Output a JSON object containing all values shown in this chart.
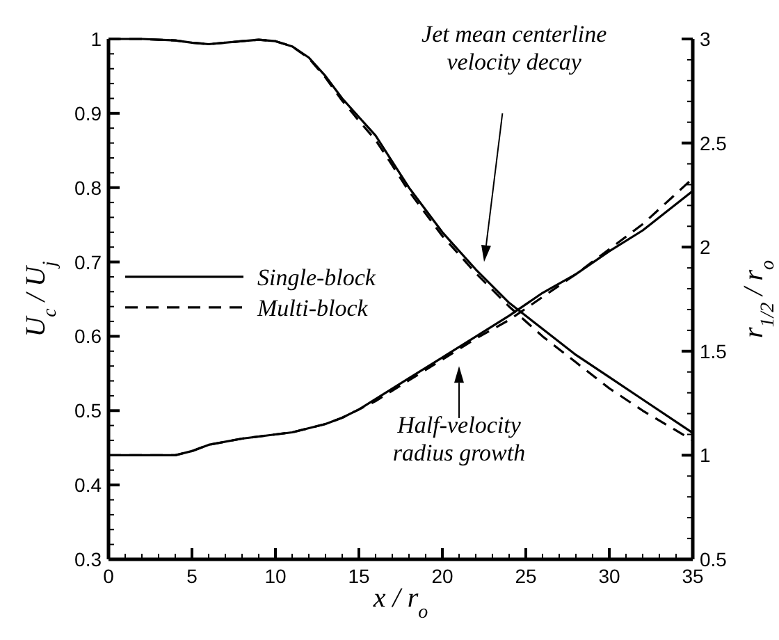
{
  "chart_data": {
    "type": "line",
    "xlabel": "x / r$_{o}$",
    "ylabel": "U$_{c}$ / U$_{j}$",
    "y2label": "r$_{1/2}$ / r$_{o}$",
    "xlim": [
      0,
      35
    ],
    "ylim": [
      0.3,
      1
    ],
    "y2lim": [
      0.5,
      3
    ],
    "xticks": [
      0,
      {
        "value": 1,
        "label": null
      },
      {
        "value": 2,
        "label": null
      },
      {
        "value": 3,
        "label": null
      },
      {
        "value": 4,
        "label": null
      },
      5,
      {
        "value": 6,
        "label": null
      },
      {
        "value": 7,
        "label": null
      },
      {
        "value": 8,
        "label": null
      },
      {
        "value": 9,
        "label": null
      },
      10,
      {
        "value": 11,
        "label": null
      },
      {
        "value": 12,
        "label": null
      },
      {
        "value": 13,
        "label": null
      },
      {
        "value": 14,
        "label": null
      },
      15,
      {
        "value": 16,
        "label": null
      },
      {
        "value": 17,
        "label": null
      },
      {
        "value": 18,
        "label": null
      },
      {
        "value": 19,
        "label": null
      },
      20,
      {
        "value": 21,
        "label": null
      },
      {
        "value": 22,
        "label": null
      },
      {
        "value": 23,
        "label": null
      },
      {
        "value": 24,
        "label": null
      },
      25,
      {
        "value": 26,
        "label": null
      },
      {
        "value": 27,
        "label": null
      },
      {
        "value": 28,
        "label": null
      },
      {
        "value": 29,
        "label": null
      },
      30,
      {
        "value": 31,
        "label": null
      },
      {
        "value": 32,
        "label": null
      },
      {
        "value": 33,
        "label": null
      },
      {
        "value": 34,
        "label": null
      },
      35
    ],
    "yticks": [
      0.3,
      {
        "value": 0.32,
        "label": null
      },
      {
        "value": 0.34,
        "label": null
      },
      {
        "value": 0.36,
        "label": null
      },
      {
        "value": 0.38,
        "label": null
      },
      0.4,
      {
        "value": 0.42,
        "label": null
      },
      {
        "value": 0.44,
        "label": null
      },
      {
        "value": 0.46,
        "label": null
      },
      {
        "value": 0.48,
        "label": null
      },
      0.5,
      {
        "value": 0.52,
        "label": null
      },
      {
        "value": 0.54,
        "label": null
      },
      {
        "value": 0.56,
        "label": null
      },
      {
        "value": 0.58,
        "label": null
      },
      0.6,
      {
        "value": 0.62,
        "label": null
      },
      {
        "value": 0.64,
        "label": null
      },
      {
        "value": 0.66,
        "label": null
      },
      {
        "value": 0.68,
        "label": null
      },
      0.7,
      {
        "value": 0.72,
        "label": null
      },
      {
        "value": 0.74,
        "label": null
      },
      {
        "value": 0.76,
        "label": null
      },
      {
        "value": 0.78,
        "label": null
      },
      0.8,
      {
        "value": 0.82,
        "label": null
      },
      {
        "value": 0.84,
        "label": null
      },
      {
        "value": 0.86,
        "label": null
      },
      {
        "value": 0.88,
        "label": null
      },
      0.9,
      {
        "value": 0.92,
        "label": null
      },
      {
        "value": 0.94,
        "label": null
      },
      {
        "value": 0.96,
        "label": null
      },
      {
        "value": 0.98,
        "label": null
      },
      1
    ],
    "y2ticks": [
      0.5,
      {
        "value": 0.6,
        "label": null
      },
      {
        "value": 0.7,
        "label": null
      },
      {
        "value": 0.8,
        "label": null
      },
      {
        "value": 0.9,
        "label": null
      },
      1,
      {
        "value": 1.1,
        "label": null
      },
      {
        "value": 1.2,
        "label": null
      },
      {
        "value": 1.3,
        "label": null
      },
      {
        "value": 1.4,
        "label": null
      },
      1.5,
      {
        "value": 1.6,
        "label": null
      },
      {
        "value": 1.7,
        "label": null
      },
      {
        "value": 1.8,
        "label": null
      },
      {
        "value": 1.9,
        "label": null
      },
      2,
      {
        "value": 2.1,
        "label": null
      },
      {
        "value": 2.2,
        "label": null
      },
      {
        "value": 2.3,
        "label": null
      },
      {
        "value": 2.4,
        "label": null
      },
      2.5,
      {
        "value": 2.6,
        "label": null
      },
      {
        "value": 2.7,
        "label": null
      },
      {
        "value": 2.8,
        "label": null
      },
      {
        "value": 2.9,
        "label": null
      },
      3
    ],
    "x": [
      0,
      2,
      4,
      5,
      6,
      8,
      9,
      10,
      11,
      12,
      13,
      14,
      15,
      16,
      17,
      18,
      20,
      22,
      24,
      26,
      28,
      30,
      32,
      35
    ],
    "series": [
      {
        "name": "Single-block",
        "color": "#000000",
        "line_style": "solid",
        "values": [
          1,
          1,
          0.998,
          0.995,
          0.993,
          0.997,
          0.999,
          0.997,
          0.99,
          0.975,
          0.95,
          0.92,
          0.895,
          0.87,
          0.835,
          0.8,
          0.74,
          0.69,
          0.645,
          0.61,
          0.575,
          0.545,
          0.515,
          0.47
        ]
      },
      {
        "name": "Multi-block",
        "color": "#000000",
        "line_style": "dashed",
        "values": [
          1,
          1,
          0.998,
          0.995,
          0.993,
          0.997,
          0.999,
          0.997,
          0.99,
          0.974,
          0.948,
          0.917,
          0.89,
          0.864,
          0.83,
          0.795,
          0.735,
          0.685,
          0.64,
          0.6,
          0.565,
          0.53,
          0.5,
          0.46
        ]
      },
      {
        "color": "#000000",
        "line_style": "solid",
        "axis": "y2",
        "values": [
          1,
          1,
          1,
          1.02,
          1.05,
          1.08,
          1.09,
          1.1,
          1.11,
          1.13,
          1.15,
          1.18,
          1.22,
          1.27,
          1.32,
          1.37,
          1.47,
          1.57,
          1.67,
          1.78,
          1.87,
          1.98,
          2.08,
          2.27
        ]
      },
      {
        "color": "#000000",
        "line_style": "dashed",
        "axis": "y2",
        "values": [
          1,
          1,
          1,
          1.02,
          1.05,
          1.08,
          1.09,
          1.1,
          1.11,
          1.13,
          1.15,
          1.18,
          1.22,
          1.26,
          1.31,
          1.36,
          1.46,
          1.56,
          1.65,
          1.76,
          1.87,
          1.99,
          2.11,
          2.33
        ]
      }
    ],
    "legend": "left",
    "grid": false,
    "marker": "none",
    "annotations": [
      "Jet mean centerline\nvelocity decay",
      "Half-velocity\nradius growth"
    ]
  }
}
